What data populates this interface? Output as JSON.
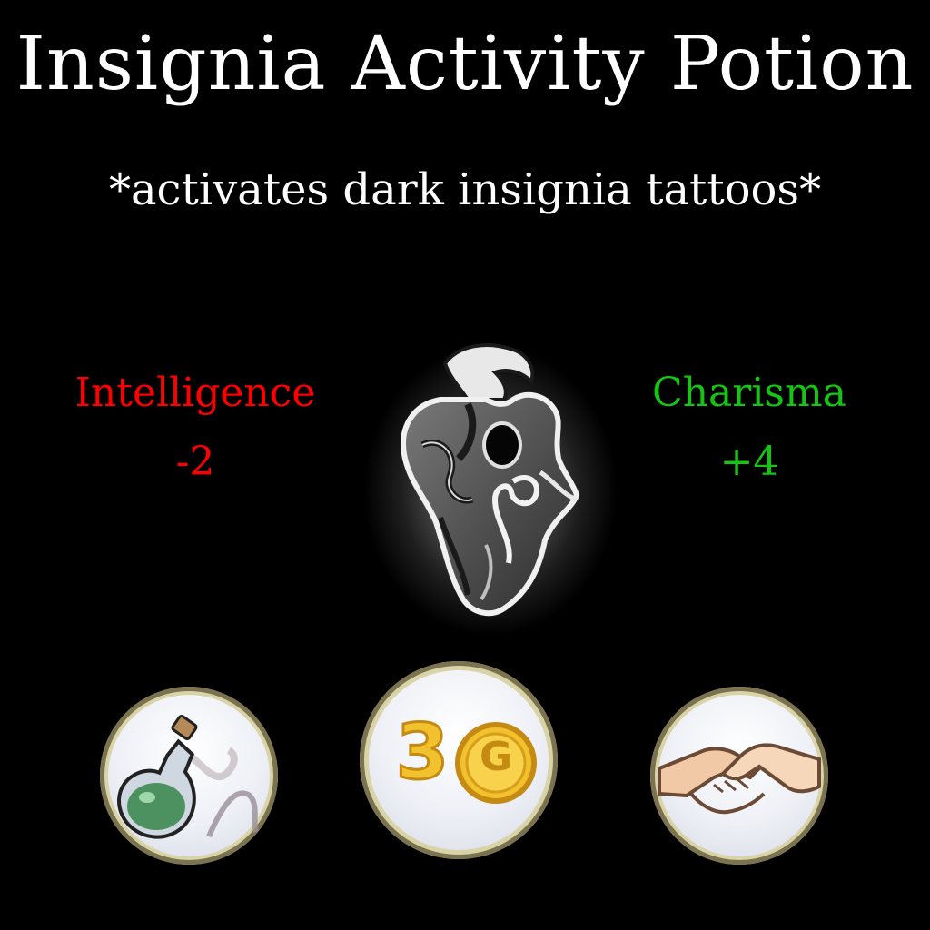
{
  "header": {
    "title": "Insignia Activity Potion",
    "subtitle": "*activates dark insignia tattoos*"
  },
  "stats": {
    "left": {
      "name": "Intelligence",
      "value": "-2",
      "color": "#ff0000"
    },
    "right": {
      "name": "Charisma",
      "value": "+4",
      "color": "#14c514"
    }
  },
  "emblem": {
    "icon": "dark-insignia-heart-icon"
  },
  "badges": {
    "potion": {
      "icon": "potion-flask-icon"
    },
    "price": {
      "icon": "gold-coin-icon",
      "amount": "3",
      "currency_symbol": "G"
    },
    "handshake": {
      "icon": "handshake-icon"
    }
  }
}
